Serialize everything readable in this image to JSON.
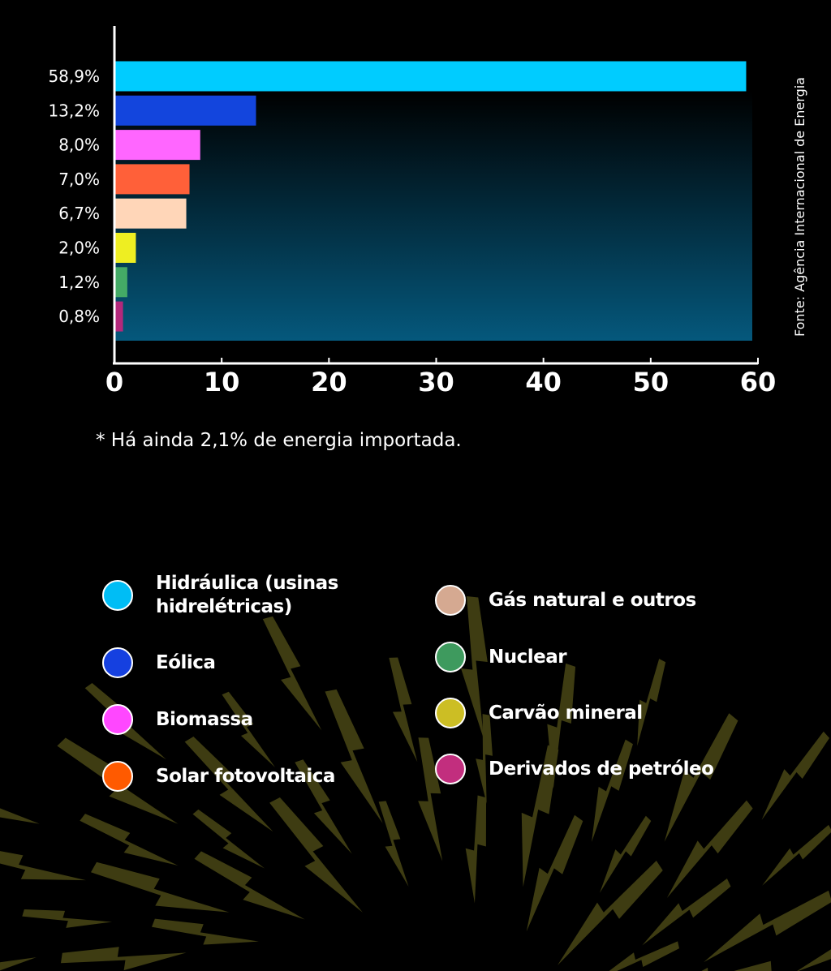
{
  "chart_data": {
    "type": "bar",
    "orientation": "horizontal",
    "categories": [
      "Hidráulica (usinas hidrelétricas)",
      "Eólica",
      "Biomassa",
      "Solar fotovoltaica",
      "Gás natural e outros",
      "Nuclear",
      "Carvão mineral",
      "Derivados de petróleo"
    ],
    "values": [
      58.9,
      13.2,
      8.0,
      7.0,
      6.7,
      2.0,
      1.2,
      0.8
    ],
    "value_labels": [
      "58,9%",
      "13,2%",
      "8,0%",
      "7,0%",
      "6,7%",
      "2,0%",
      "1,2%",
      "0,8%"
    ],
    "colors": [
      "#00ccff",
      "#1345dd",
      "#ff66ff",
      "#ff6039",
      "#ffd6b8",
      "#eeee22",
      "#44aa66",
      "#b3287b"
    ],
    "x_ticks": [
      "0",
      "10",
      "20",
      "30",
      "40",
      "50",
      "60"
    ],
    "xlim": [
      0,
      60
    ],
    "grid": false,
    "legend_position": "bottom"
  },
  "source_note": "Fonte: Agência Internacional de Energia",
  "footnote": "* Há ainda 2,1% de energia importada.",
  "legend": [
    {
      "label": "Hidráulica (usinas hidrelétricas)",
      "color": "#00bdf5"
    },
    {
      "label": "Eólica",
      "color": "#1540e0"
    },
    {
      "label": "Biomassa",
      "color": "#ff47ff"
    },
    {
      "label": "Solar fotovoltaica",
      "color": "#ff5a00"
    },
    {
      "label": "Gás natural e outros",
      "color": "#d5a991"
    },
    {
      "label": "Nuclear",
      "color": "#3e9a5e"
    },
    {
      "label": "Carvão mineral",
      "color": "#ccbe24"
    },
    {
      "label": "Derivados de petróleo",
      "color": "#c22e7e"
    }
  ],
  "style": {
    "background": "#000000",
    "plot_gradient_top": "#000000",
    "plot_gradient_bottom": "#05587c",
    "axis_color": "#ffffff",
    "bolt_color": "#3e3c12"
  }
}
